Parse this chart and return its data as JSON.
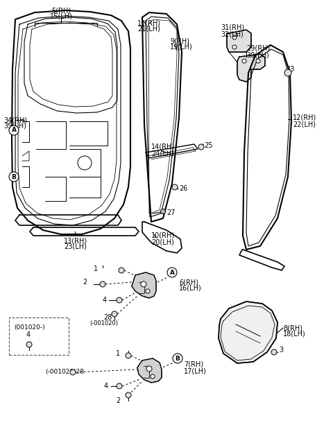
{
  "bg_color": "#ffffff",
  "lc": "#000000",
  "parts": {
    "label_5_15": [
      "5(RH)",
      "15(LH)"
    ],
    "label_34_35": [
      "34(RH)",
      "35(LH)"
    ],
    "label_11_21": [
      "11(RH)",
      "21(LH)"
    ],
    "label_9_19": [
      "9(RH)",
      "19(LH)"
    ],
    "label_14_24": [
      "14(RH)",
      "24(LH)"
    ],
    "label_25": "25",
    "label_26": "26",
    "label_27": "27",
    "label_10_20": [
      "10(RH)",
      "20(LH)"
    ],
    "label_13_23": [
      "13(RH)",
      "23(LH)"
    ],
    "label_31_32": [
      "31(RH)",
      "32(LH)"
    ],
    "label_29_30": [
      "29(RH)",
      "30(LH)"
    ],
    "label_33": "33",
    "label_12_22": [
      "12(RH)",
      "22(LH)"
    ],
    "label_A": "A",
    "label_B": "B",
    "label_6_16": [
      "6(RH)",
      "16(LH)"
    ],
    "label_7_17": [
      "7(RH)",
      "17(LH)"
    ],
    "label_8_18": [
      "8(RH)",
      "18(LH)"
    ],
    "label_3": "3",
    "label_28a": "28",
    "label_28a_sub": "(-001020)",
    "label_box": "(001020-)",
    "label_box_4": "4",
    "label_28b_pre": "(-001020)28"
  }
}
